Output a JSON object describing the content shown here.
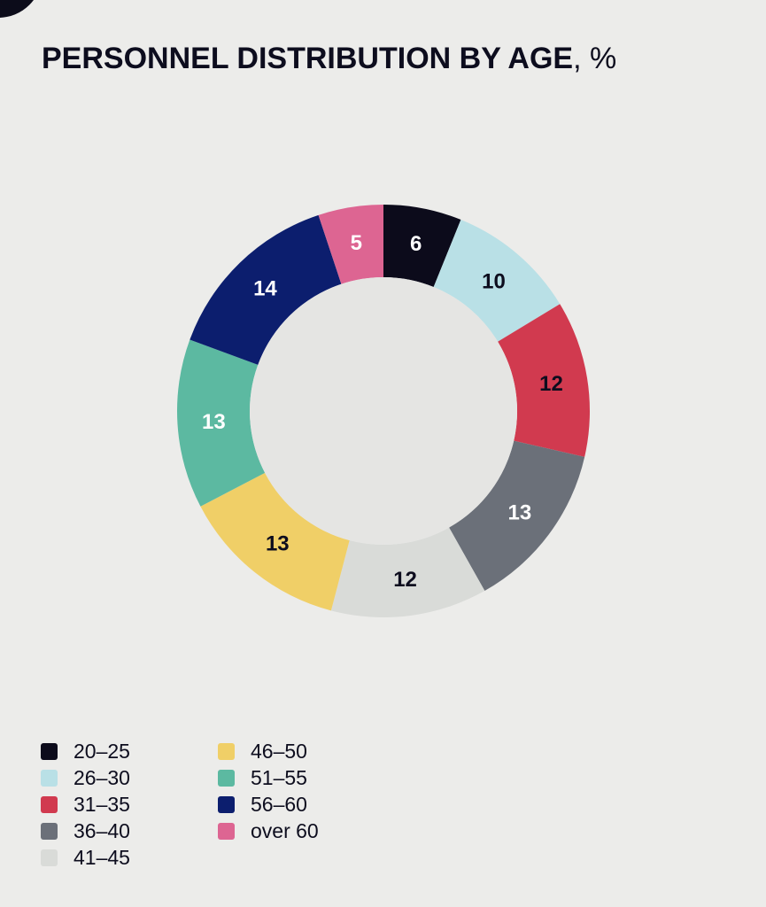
{
  "header": {
    "title_main": "PERSONNEL DISTRIBUTION BY AGE",
    "title_unit": ", %"
  },
  "colors": {
    "background": "#ececea",
    "text": "#0d0d1e",
    "label_dark": "#0d0d1e",
    "label_light": "#ffffff"
  },
  "chart_data": {
    "type": "pie",
    "variant": "donut",
    "title": "PERSONNEL DISTRIBUTION BY AGE, %",
    "unit": "%",
    "start_angle_deg": 0,
    "direction": "clockwise",
    "legend_position": "bottom-left",
    "slices": [
      {
        "label": "20–25",
        "value": 6,
        "color": "#0c0b1b",
        "label_color": "light"
      },
      {
        "label": "26–30",
        "value": 10,
        "color": "#b9e0e6",
        "label_color": "dark"
      },
      {
        "label": "31–35",
        "value": 12,
        "color": "#d13a4f",
        "label_color": "dark"
      },
      {
        "label": "36–40",
        "value": 13,
        "color": "#6b7079",
        "label_color": "light"
      },
      {
        "label": "41–45",
        "value": 12,
        "color": "#d9dbd8",
        "label_color": "dark"
      },
      {
        "label": "46–50",
        "value": 13,
        "color": "#f0cf67",
        "label_color": "dark"
      },
      {
        "label": "51–55",
        "value": 13,
        "color": "#5cb9a1",
        "label_color": "light"
      },
      {
        "label": "56–60",
        "value": 14,
        "color": "#0c1e6e",
        "label_color": "light"
      },
      {
        "label": "over 60",
        "value": 5,
        "color": "#dd6592",
        "label_color": "light"
      }
    ]
  }
}
